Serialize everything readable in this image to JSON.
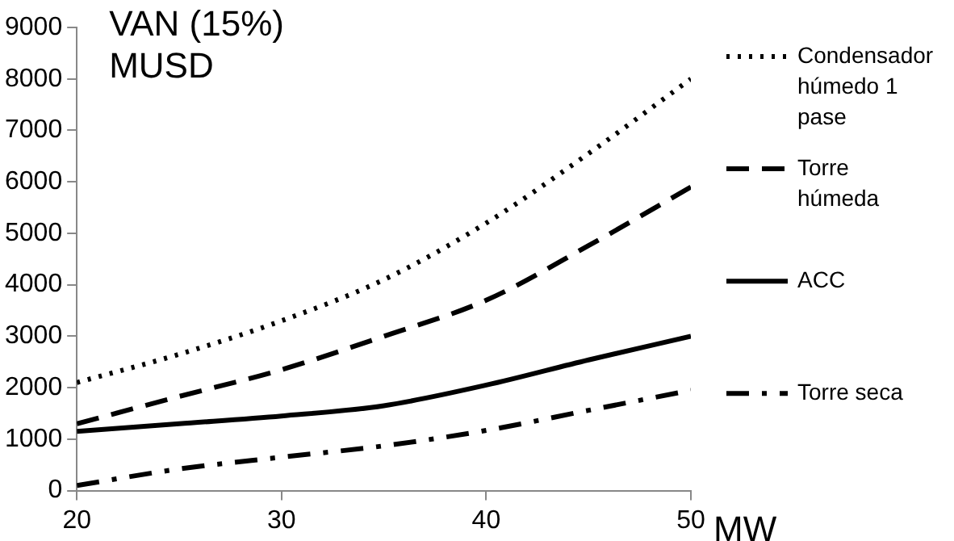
{
  "chart_data": {
    "type": "line",
    "ylabel": "VAN (15%) MUSD",
    "xlabel": "MW",
    "x": [
      20,
      25,
      30,
      35,
      40,
      45,
      50
    ],
    "xlim": [
      20,
      50
    ],
    "xticks": [
      20,
      30,
      40,
      50
    ],
    "ylim": [
      0,
      9000
    ],
    "yticks": [
      0,
      1000,
      2000,
      3000,
      4000,
      5000,
      6000,
      7000,
      8000,
      9000
    ],
    "grid": false,
    "legend": "right",
    "marker": "none",
    "series": [
      {
        "name": "Condensador húmedo 1 pase",
        "color": "#000000",
        "line_style": "dotted",
        "values": [
          2100,
          2650,
          3300,
          4100,
          5200,
          6550,
          8000
        ]
      },
      {
        "name": "Torre húmeda",
        "color": "#000000",
        "line_style": "dashed",
        "values": [
          1300,
          1830,
          2350,
          3000,
          3700,
          4760,
          5900
        ]
      },
      {
        "name": "ACC",
        "color": "#000000",
        "line_style": "solid",
        "values": [
          1150,
          1300,
          1450,
          1650,
          2050,
          2540,
          3000
        ]
      },
      {
        "name": "Torre seca",
        "color": "#000000",
        "line_style": "dashdot",
        "values": [
          100,
          420,
          650,
          870,
          1170,
          1560,
          1950
        ]
      }
    ]
  }
}
